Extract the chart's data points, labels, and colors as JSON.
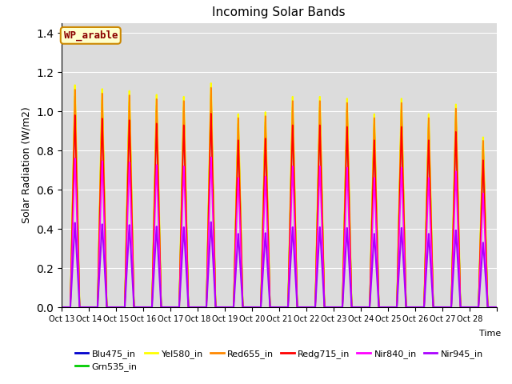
{
  "title": "Incoming Solar Bands",
  "xlabel": "Time",
  "ylabel": "Solar Radiation (W/m2)",
  "annotation": "WP_arable",
  "ylim": [
    0,
    1.45
  ],
  "background_color": "#dcdcdc",
  "num_days": 16,
  "series": [
    {
      "name": "Blu475_in",
      "color": "#0000cc",
      "peak_scale": 0.93,
      "linewidth": 1.2
    },
    {
      "name": "Grn535_in",
      "color": "#00cc00",
      "peak_scale": 0.95,
      "linewidth": 1.2
    },
    {
      "name": "Yel580_in",
      "color": "#ffff00",
      "peak_scale": 1.0,
      "linewidth": 1.5
    },
    {
      "name": "Red655_in",
      "color": "#ff8800",
      "peak_scale": 0.98,
      "linewidth": 1.2
    },
    {
      "name": "Redg715_in",
      "color": "#ff0000",
      "peak_scale": 0.865,
      "linewidth": 1.2
    },
    {
      "name": "Nir840_in",
      "color": "#ff00ff",
      "peak_scale": 0.67,
      "linewidth": 1.2
    },
    {
      "name": "Nir945_in",
      "color": "#aa00ff",
      "peak_scale": 0.38,
      "linewidth": 1.5
    }
  ],
  "tick_labels": [
    "Oct 13",
    "Oct 14",
    "Oct 15",
    "Oct 16",
    "Oct 17",
    "Oct 18",
    "Oct 19",
    "Oct 20",
    "Oct 21",
    "Oct 22",
    "Oct 23",
    "Oct 24",
    "Oct 25",
    "Oct 26",
    "Oct 27",
    "Oct 28"
  ],
  "day_peaks": [
    1.15,
    1.13,
    1.12,
    1.1,
    1.09,
    1.16,
    1.0,
    1.01,
    1.09,
    1.09,
    1.08,
    1.0,
    1.08,
    1.0,
    1.05,
    0.88
  ]
}
